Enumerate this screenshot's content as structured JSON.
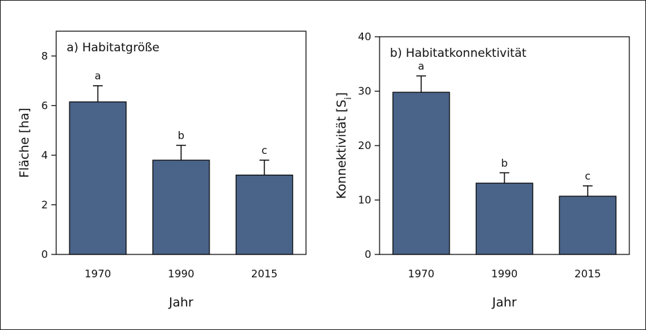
{
  "chart_data": [
    {
      "type": "bar",
      "title": "a) Habitatgröße",
      "xlabel": "Jahr",
      "ylabel": "Fläche [ha]",
      "categories": [
        "1970",
        "1990",
        "2015"
      ],
      "values": [
        6.15,
        3.8,
        3.2
      ],
      "errors": [
        0.65,
        0.6,
        0.6
      ],
      "letters": [
        "a",
        "b",
        "c"
      ],
      "ylim": [
        0,
        9
      ],
      "yticks": [
        0,
        2,
        4,
        6,
        8
      ],
      "bar_color": "#4a6389",
      "grid": false
    },
    {
      "type": "bar",
      "title": "b) Habitatkonnektivität",
      "xlabel": "Jahr",
      "ylabel": "Konnektivität [Si]",
      "ylabel_main": "Konnektivität [S",
      "ylabel_sub": "i",
      "ylabel_end": "]",
      "categories": [
        "1970",
        "1990",
        "2015"
      ],
      "values": [
        29.8,
        13.1,
        10.7
      ],
      "errors": [
        3.0,
        1.9,
        1.9
      ],
      "letters": [
        "a",
        "b",
        "c"
      ],
      "ylim": [
        0,
        40
      ],
      "yticks": [
        0,
        10,
        20,
        30,
        40
      ],
      "bar_color": "#4a6389",
      "grid": false
    }
  ]
}
